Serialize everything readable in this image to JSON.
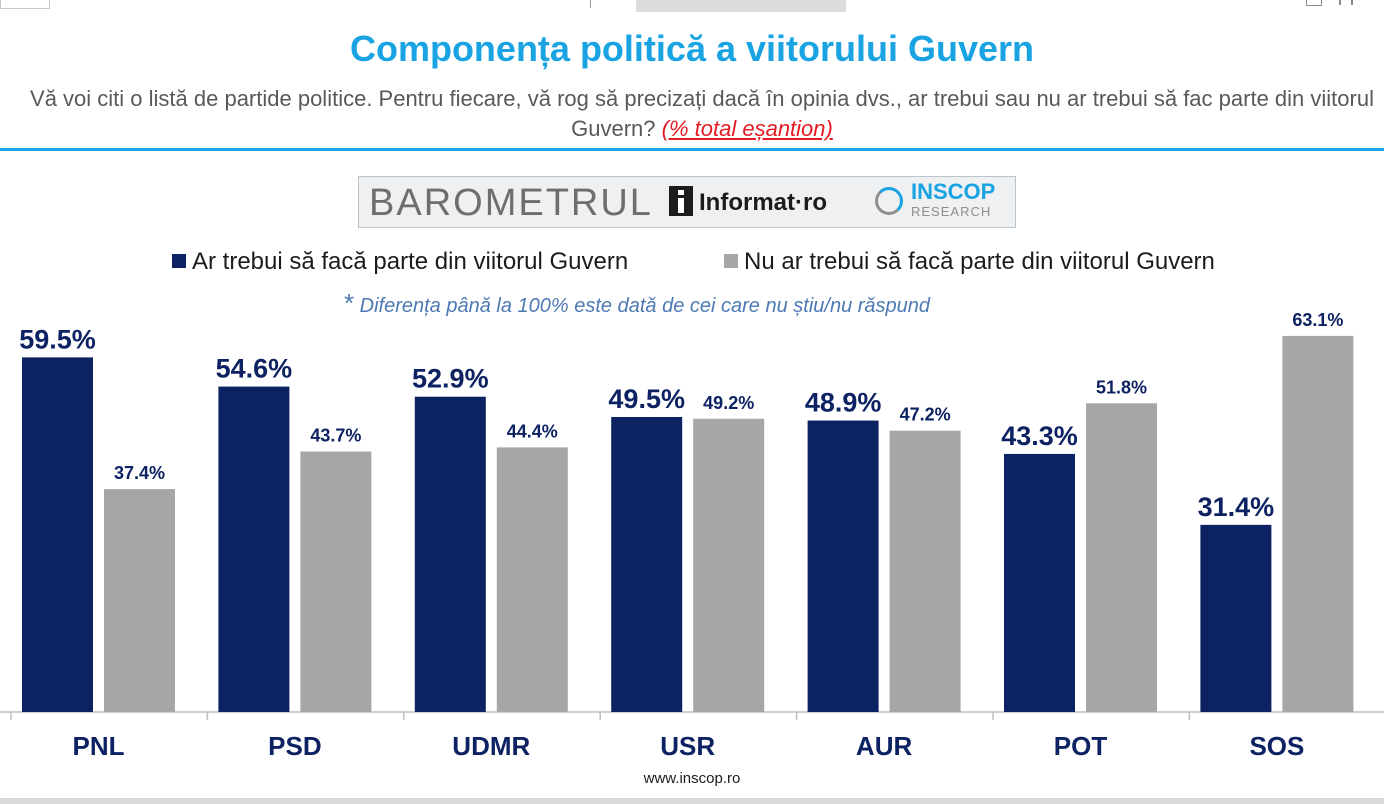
{
  "header": {
    "title": "Componența politică a viitorului Guvern",
    "subtitle_main": "Vă voi citi o listă de partide politice. Pentru fiecare, vă rog să precizați dacă în opinia dvs., ar trebui sau nu ar trebui să fac parte din viitorul Guvern?",
    "subtitle_note": "(% total eșantion)"
  },
  "banner": {
    "barometrul": "BAROMETRUL",
    "informat": "Informat·ro",
    "inscop": "INSCOP",
    "research": "RESEARCH"
  },
  "note": {
    "star": "*",
    "text": "Diferența până la 100% este dată de cei care nu știu/nu răspund"
  },
  "footer": "www.inscop.ro",
  "colors": {
    "navy": "#0d2262",
    "gray": "#a6a6a6",
    "accent": "#1aa3e3",
    "red": "#e31b23"
  },
  "chart_data": {
    "type": "bar",
    "categories": [
      "PNL",
      "PSD",
      "UDMR",
      "USR",
      "AUR",
      "POT",
      "SOS"
    ],
    "series": [
      {
        "name": "Ar trebui să facă parte din viitorul Guvern",
        "color": "#0d2262",
        "values": [
          59.5,
          54.6,
          52.9,
          49.5,
          48.9,
          43.3,
          31.4
        ],
        "labels": [
          "59.5%",
          "54.6%",
          "52.9%",
          "49.5%",
          "48.9%",
          "43.3%",
          "31.4%"
        ]
      },
      {
        "name": "Nu ar trebui să facă parte din viitorul Guvern",
        "color": "#a6a6a6",
        "values": [
          37.4,
          43.7,
          44.4,
          49.2,
          47.2,
          51.8,
          63.1
        ],
        "labels": [
          "37.4%",
          "43.7%",
          "44.4%",
          "49.2%",
          "47.2%",
          "51.8%",
          "63.1%"
        ]
      }
    ],
    "ylim": [
      0,
      100
    ],
    "grid": false,
    "legend": "top"
  }
}
